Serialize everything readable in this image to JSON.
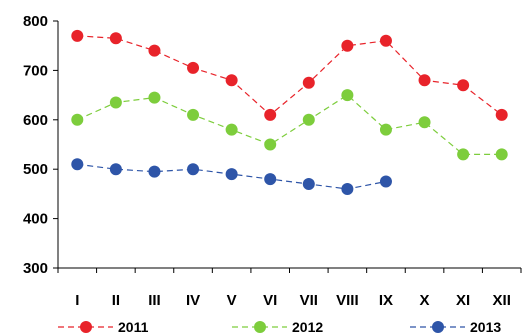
{
  "chart_data": {
    "type": "line",
    "categories": [
      "I",
      "II",
      "III",
      "IV",
      "V",
      "VI",
      "VII",
      "VIII",
      "IX",
      "X",
      "XI",
      "XII"
    ],
    "series": [
      {
        "name": "2011",
        "color": "#e8232a",
        "values": [
          770,
          765,
          740,
          705,
          680,
          610,
          675,
          750,
          760,
          680,
          670,
          610
        ]
      },
      {
        "name": "2012",
        "color": "#7dcd3c",
        "values": [
          600,
          635,
          645,
          610,
          580,
          550,
          600,
          650,
          580,
          595,
          530,
          530
        ]
      },
      {
        "name": "2013",
        "color": "#2e55a8",
        "values": [
          510,
          500,
          495,
          500,
          490,
          480,
          470,
          460,
          475,
          null,
          null,
          null
        ]
      }
    ],
    "ylim": [
      300,
      800
    ],
    "yticks": [
      300,
      400,
      500,
      600,
      700,
      800
    ],
    "title": "",
    "xlabel": "",
    "ylabel": "",
    "grid": false,
    "legend_position": "bottom",
    "line_style": "dashed"
  }
}
